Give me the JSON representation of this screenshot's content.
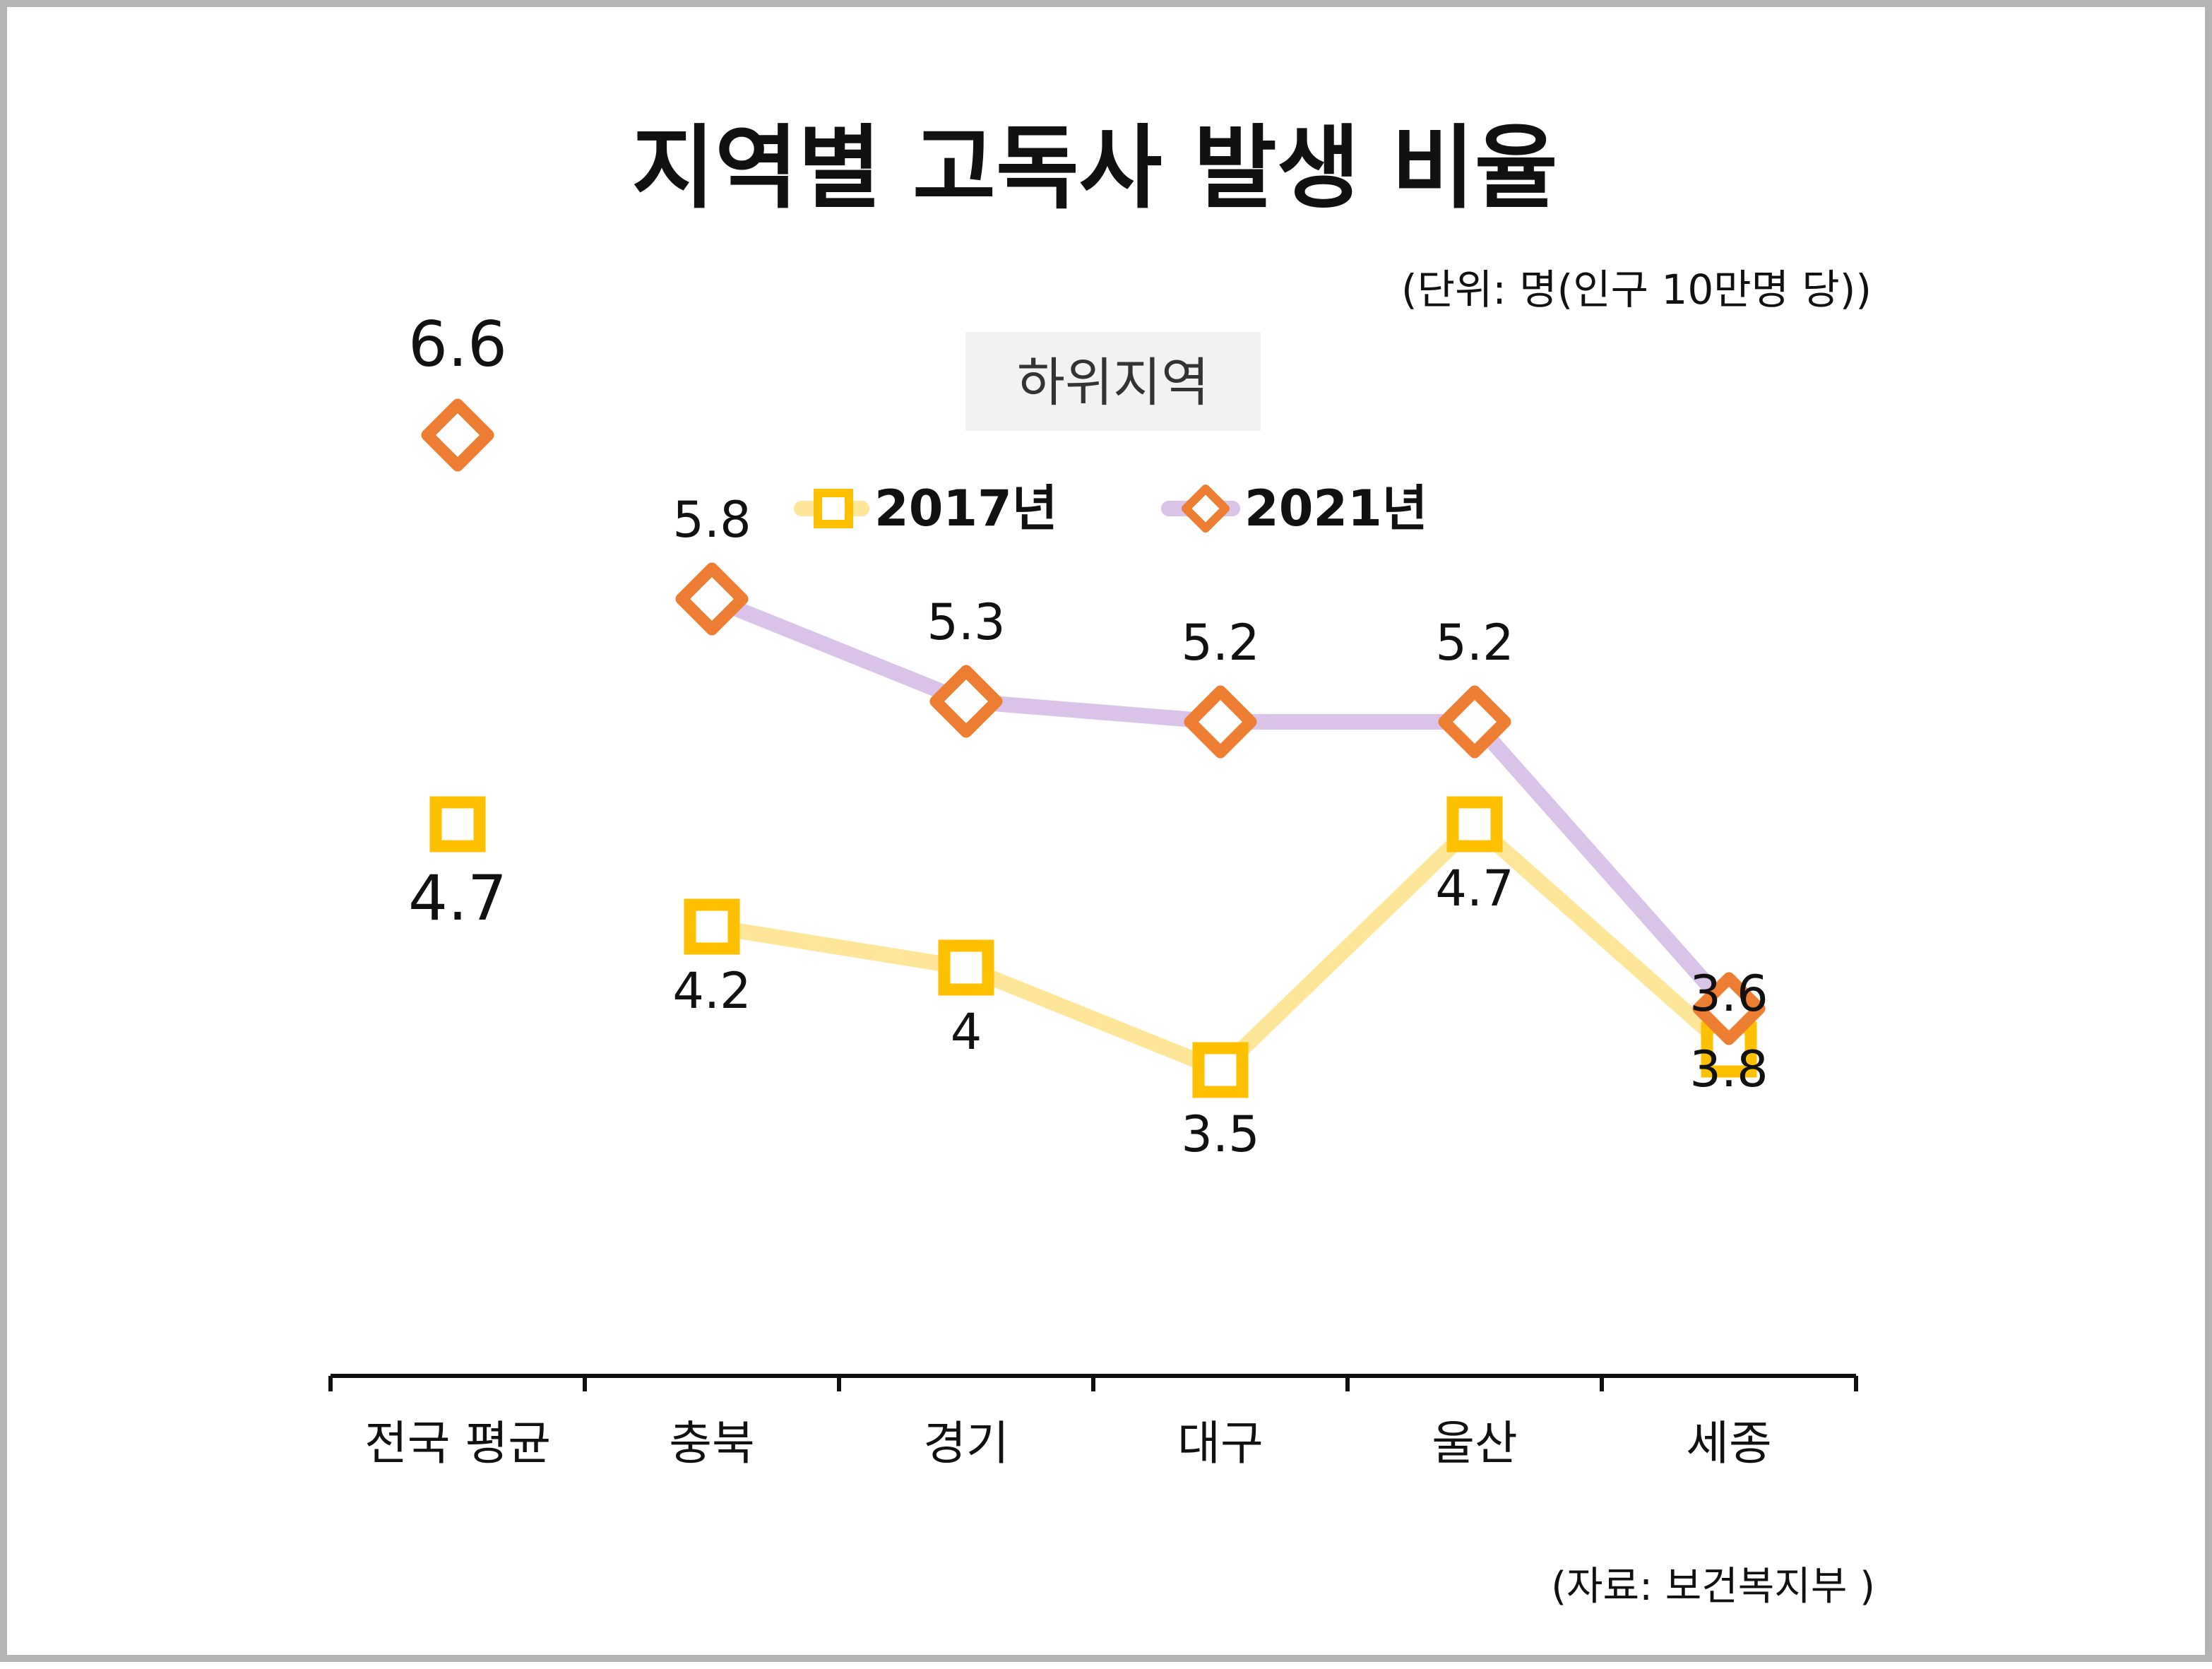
{
  "chart_data": {
    "type": "line",
    "title": "지역별 고독사 발생 비율",
    "unit_note": "(단위: 명(인구 10만명 당))",
    "subtitle": "하위지역",
    "source": "(자료: 보건복지부 )",
    "categories": [
      "전국 평균",
      "충북",
      "경기",
      "대구",
      "울산",
      "세종"
    ],
    "series": [
      {
        "name": "2017년",
        "values": [
          4.7,
          4.2,
          4.0,
          3.5,
          4.7,
          3.6
        ],
        "labels": [
          "4.7",
          "4.2",
          "4",
          "3.5",
          "4.7",
          "3.6"
        ],
        "marker": "square",
        "marker_color": "#FFC000",
        "line_color": "#FFE699",
        "connect_first_point": false
      },
      {
        "name": "2021년",
        "values": [
          6.6,
          5.8,
          5.3,
          5.2,
          5.2,
          3.8
        ],
        "labels": [
          "6.6",
          "5.8",
          "5.3",
          "5.2",
          "5.2",
          "3.8"
        ],
        "marker": "diamond",
        "marker_color": "#ED7D31",
        "line_color": "#D9C3E9",
        "connect_first_point": false
      }
    ],
    "ylim": [
      0,
      8.4
    ],
    "grid": false,
    "legend_position": "top-center"
  }
}
